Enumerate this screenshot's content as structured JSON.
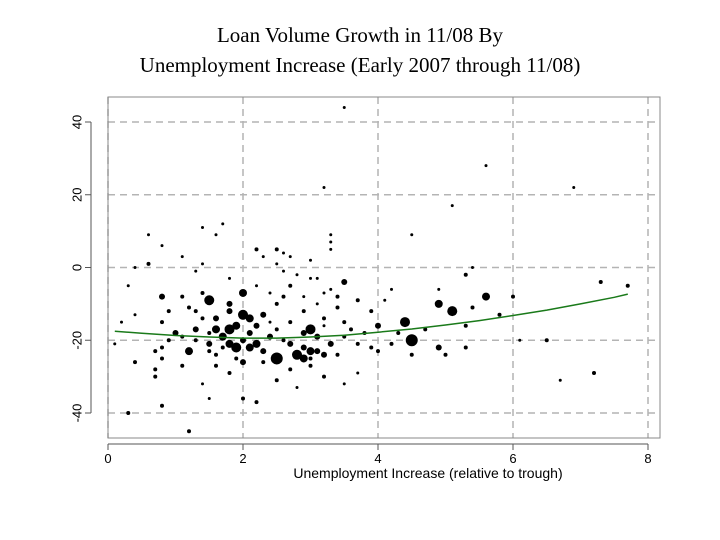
{
  "chart_data": {
    "type": "scatter",
    "title": "Loan Volume Growth in 11/08 By",
    "subtitle": "Unemployment Increase (Early 2007 through 11/08)",
    "xlabel": "Unemployment Increase (relative to trough)",
    "ylabel": "",
    "xlim": [
      0,
      8
    ],
    "ylim": [
      -40,
      40
    ],
    "x_ticks": [
      0,
      2,
      4,
      6,
      8
    ],
    "y_ticks": [
      -40,
      -20,
      0,
      20,
      40
    ],
    "grid": true,
    "colors": {
      "points": "#000000",
      "trend": "#1a7a1a",
      "grid": "#b4b4b4",
      "frame": "#888888"
    },
    "points": [
      {
        "x": 3.5,
        "y": 44,
        "s": 1.5
      },
      {
        "x": 5.6,
        "y": 28,
        "s": 1.5
      },
      {
        "x": 6.9,
        "y": 22,
        "s": 1.5
      },
      {
        "x": 3.2,
        "y": 22,
        "s": 1.5
      },
      {
        "x": 5.1,
        "y": 17,
        "s": 1.5
      },
      {
        "x": 1.7,
        "y": 12,
        "s": 1.5
      },
      {
        "x": 1.4,
        "y": 11,
        "s": 1.5
      },
      {
        "x": 0.6,
        "y": 9,
        "s": 1.5
      },
      {
        "x": 1.6,
        "y": 9,
        "s": 1.5
      },
      {
        "x": 4.5,
        "y": 9,
        "s": 1.5
      },
      {
        "x": 3.3,
        "y": 9,
        "s": 1.5
      },
      {
        "x": 3.3,
        "y": 7,
        "s": 1.5
      },
      {
        "x": 0.8,
        "y": 6,
        "s": 1.5
      },
      {
        "x": 2.2,
        "y": 5,
        "s": 2
      },
      {
        "x": 2.5,
        "y": 5,
        "s": 2
      },
      {
        "x": 3.3,
        "y": 5,
        "s": 1.5
      },
      {
        "x": 2.6,
        "y": 4,
        "s": 1.5
      },
      {
        "x": 2.7,
        "y": 3,
        "s": 1.5
      },
      {
        "x": 1.1,
        "y": 3,
        "s": 1.5
      },
      {
        "x": 2.3,
        "y": 3,
        "s": 1.5
      },
      {
        "x": 3.0,
        "y": 2,
        "s": 1.5
      },
      {
        "x": 0.6,
        "y": 1,
        "s": 2
      },
      {
        "x": 1.4,
        "y": 1,
        "s": 1.5
      },
      {
        "x": 2.5,
        "y": 1,
        "s": 1.5
      },
      {
        "x": 5.4,
        "y": 0,
        "s": 1.5
      },
      {
        "x": 0.4,
        "y": 0,
        "s": 1.5
      },
      {
        "x": 1.3,
        "y": -1,
        "s": 1.5
      },
      {
        "x": 2.6,
        "y": -1,
        "s": 1.5
      },
      {
        "x": 2.8,
        "y": -2,
        "s": 1.5
      },
      {
        "x": 5.3,
        "y": -2,
        "s": 2
      },
      {
        "x": 3.0,
        "y": -3,
        "s": 1.5
      },
      {
        "x": 3.1,
        "y": -3,
        "s": 1.5
      },
      {
        "x": 1.8,
        "y": -3,
        "s": 1.5
      },
      {
        "x": 3.5,
        "y": -4,
        "s": 3
      },
      {
        "x": 7.3,
        "y": -4,
        "s": 2
      },
      {
        "x": 7.7,
        "y": -5,
        "s": 2
      },
      {
        "x": 2.7,
        "y": -5,
        "s": 2
      },
      {
        "x": 2.2,
        "y": -5,
        "s": 1.5
      },
      {
        "x": 0.3,
        "y": -5,
        "s": 1.5
      },
      {
        "x": 3.3,
        "y": -6,
        "s": 1.5
      },
      {
        "x": 4.9,
        "y": -6,
        "s": 1.5
      },
      {
        "x": 4.2,
        "y": -6,
        "s": 1.5
      },
      {
        "x": 2.0,
        "y": -7,
        "s": 4
      },
      {
        "x": 1.4,
        "y": -7,
        "s": 2
      },
      {
        "x": 3.2,
        "y": -7,
        "s": 1.5
      },
      {
        "x": 2.4,
        "y": -7,
        "s": 1.5
      },
      {
        "x": 5.6,
        "y": -8,
        "s": 4
      },
      {
        "x": 6.0,
        "y": -8,
        "s": 2
      },
      {
        "x": 0.8,
        "y": -8,
        "s": 3
      },
      {
        "x": 1.1,
        "y": -8,
        "s": 2
      },
      {
        "x": 2.6,
        "y": -8,
        "s": 2
      },
      {
        "x": 2.9,
        "y": -8,
        "s": 1.5
      },
      {
        "x": 3.4,
        "y": -8,
        "s": 2
      },
      {
        "x": 3.7,
        "y": -9,
        "s": 2
      },
      {
        "x": 4.1,
        "y": -9,
        "s": 1.5
      },
      {
        "x": 1.5,
        "y": -9,
        "s": 5
      },
      {
        "x": 1.8,
        "y": -10,
        "s": 3
      },
      {
        "x": 2.5,
        "y": -10,
        "s": 2
      },
      {
        "x": 3.1,
        "y": -10,
        "s": 1.5
      },
      {
        "x": 4.9,
        "y": -10,
        "s": 4
      },
      {
        "x": 5.4,
        "y": -11,
        "s": 2
      },
      {
        "x": 1.2,
        "y": -11,
        "s": 2
      },
      {
        "x": 3.4,
        "y": -11,
        "s": 2
      },
      {
        "x": 0.9,
        "y": -12,
        "s": 2
      },
      {
        "x": 1.3,
        "y": -12,
        "s": 2
      },
      {
        "x": 1.8,
        "y": -12,
        "s": 3
      },
      {
        "x": 2.9,
        "y": -12,
        "s": 2
      },
      {
        "x": 3.9,
        "y": -12,
        "s": 2
      },
      {
        "x": 5.1,
        "y": -12,
        "s": 5
      },
      {
        "x": 5.8,
        "y": -13,
        "s": 2
      },
      {
        "x": 0.4,
        "y": -13,
        "s": 1.5
      },
      {
        "x": 2.0,
        "y": -13,
        "s": 5
      },
      {
        "x": 2.3,
        "y": -13,
        "s": 3
      },
      {
        "x": 2.1,
        "y": -14,
        "s": 4
      },
      {
        "x": 1.4,
        "y": -14,
        "s": 2
      },
      {
        "x": 1.6,
        "y": -14,
        "s": 3
      },
      {
        "x": 3.2,
        "y": -14,
        "s": 2
      },
      {
        "x": 3.5,
        "y": -15,
        "s": 2
      },
      {
        "x": 4.4,
        "y": -15,
        "s": 5
      },
      {
        "x": 0.2,
        "y": -15,
        "s": 1.5
      },
      {
        "x": 0.8,
        "y": -15,
        "s": 2
      },
      {
        "x": 2.7,
        "y": -15,
        "s": 2
      },
      {
        "x": 2.4,
        "y": -15,
        "s": 1.5
      },
      {
        "x": 4.0,
        "y": -16,
        "s": 3
      },
      {
        "x": 5.3,
        "y": -16,
        "s": 2
      },
      {
        "x": 1.9,
        "y": -16,
        "s": 4
      },
      {
        "x": 2.2,
        "y": -16,
        "s": 3
      },
      {
        "x": 3.2,
        "y": -16,
        "s": 1.5
      },
      {
        "x": 1.8,
        "y": -17,
        "s": 5
      },
      {
        "x": 1.6,
        "y": -17,
        "s": 4
      },
      {
        "x": 1.3,
        "y": -17,
        "s": 3
      },
      {
        "x": 2.5,
        "y": -17,
        "s": 2
      },
      {
        "x": 3.0,
        "y": -17,
        "s": 5
      },
      {
        "x": 3.6,
        "y": -17,
        "s": 2
      },
      {
        "x": 4.7,
        "y": -17,
        "s": 2
      },
      {
        "x": 1.0,
        "y": -18,
        "s": 3
      },
      {
        "x": 1.5,
        "y": -18,
        "s": 2
      },
      {
        "x": 2.1,
        "y": -18,
        "s": 3
      },
      {
        "x": 3.8,
        "y": -18,
        "s": 2
      },
      {
        "x": 4.3,
        "y": -18,
        "s": 2
      },
      {
        "x": 2.9,
        "y": -18,
        "s": 3
      },
      {
        "x": 1.1,
        "y": -19,
        "s": 2
      },
      {
        "x": 1.7,
        "y": -19,
        "s": 4
      },
      {
        "x": 2.4,
        "y": -19,
        "s": 3
      },
      {
        "x": 3.1,
        "y": -19,
        "s": 3
      },
      {
        "x": 3.5,
        "y": -19,
        "s": 2
      },
      {
        "x": 0.9,
        "y": -20,
        "s": 2
      },
      {
        "x": 2.0,
        "y": -20,
        "s": 3
      },
      {
        "x": 4.5,
        "y": -20,
        "s": 6
      },
      {
        "x": 6.1,
        "y": -20,
        "s": 1.5
      },
      {
        "x": 6.5,
        "y": -20,
        "s": 2
      },
      {
        "x": 1.3,
        "y": -20,
        "s": 2
      },
      {
        "x": 2.6,
        "y": -20,
        "s": 2
      },
      {
        "x": 3.3,
        "y": -21,
        "s": 3
      },
      {
        "x": 1.8,
        "y": -21,
        "s": 4
      },
      {
        "x": 2.2,
        "y": -21,
        "s": 4
      },
      {
        "x": 2.7,
        "y": -21,
        "s": 3
      },
      {
        "x": 3.7,
        "y": -21,
        "s": 2
      },
      {
        "x": 4.2,
        "y": -21,
        "s": 2
      },
      {
        "x": 1.5,
        "y": -21,
        "s": 3
      },
      {
        "x": 1.9,
        "y": -22,
        "s": 5
      },
      {
        "x": 2.1,
        "y": -22,
        "s": 4
      },
      {
        "x": 4.9,
        "y": -22,
        "s": 3
      },
      {
        "x": 5.3,
        "y": -22,
        "s": 2
      },
      {
        "x": 0.1,
        "y": -21,
        "s": 1.5
      },
      {
        "x": 0.8,
        "y": -22,
        "s": 2
      },
      {
        "x": 1.7,
        "y": -22,
        "s": 2
      },
      {
        "x": 2.9,
        "y": -22,
        "s": 3
      },
      {
        "x": 3.9,
        "y": -22,
        "s": 2
      },
      {
        "x": 3.1,
        "y": -23,
        "s": 3
      },
      {
        "x": 3.0,
        "y": -23,
        "s": 4
      },
      {
        "x": 4.0,
        "y": -23,
        "s": 2
      },
      {
        "x": 1.2,
        "y": -23,
        "s": 4
      },
      {
        "x": 1.5,
        "y": -23,
        "s": 2
      },
      {
        "x": 2.3,
        "y": -23,
        "s": 3
      },
      {
        "x": 0.7,
        "y": -23,
        "s": 2
      },
      {
        "x": 3.2,
        "y": -24,
        "s": 3
      },
      {
        "x": 2.8,
        "y": -24,
        "s": 5
      },
      {
        "x": 1.6,
        "y": -24,
        "s": 2
      },
      {
        "x": 4.5,
        "y": -24,
        "s": 2
      },
      {
        "x": 5.0,
        "y": -24,
        "s": 2
      },
      {
        "x": 3.4,
        "y": -24,
        "s": 2
      },
      {
        "x": 2.5,
        "y": -25,
        "s": 6
      },
      {
        "x": 2.9,
        "y": -25,
        "s": 4
      },
      {
        "x": 1.9,
        "y": -25,
        "s": 2
      },
      {
        "x": 2.0,
        "y": -26,
        "s": 3
      },
      {
        "x": 3.0,
        "y": -25,
        "s": 2
      },
      {
        "x": 0.8,
        "y": -25,
        "s": 2
      },
      {
        "x": 0.4,
        "y": -26,
        "s": 2
      },
      {
        "x": 2.3,
        "y": -26,
        "s": 2
      },
      {
        "x": 1.1,
        "y": -27,
        "s": 2
      },
      {
        "x": 1.6,
        "y": -27,
        "s": 2
      },
      {
        "x": 3.0,
        "y": -27,
        "s": 2
      },
      {
        "x": 2.7,
        "y": -28,
        "s": 2
      },
      {
        "x": 0.7,
        "y": -28,
        "s": 2
      },
      {
        "x": 1.8,
        "y": -29,
        "s": 2
      },
      {
        "x": 7.2,
        "y": -29,
        "s": 2
      },
      {
        "x": 3.7,
        "y": -29,
        "s": 1.5
      },
      {
        "x": 0.7,
        "y": -30,
        "s": 2
      },
      {
        "x": 3.2,
        "y": -30,
        "s": 2
      },
      {
        "x": 6.7,
        "y": -31,
        "s": 1.5
      },
      {
        "x": 2.5,
        "y": -31,
        "s": 2
      },
      {
        "x": 1.4,
        "y": -32,
        "s": 1.5
      },
      {
        "x": 3.5,
        "y": -32,
        "s": 1.5
      },
      {
        "x": 2.8,
        "y": -33,
        "s": 1.5
      },
      {
        "x": 1.5,
        "y": -36,
        "s": 1.5
      },
      {
        "x": 2.0,
        "y": -36,
        "s": 2
      },
      {
        "x": 2.2,
        "y": -37,
        "s": 2
      },
      {
        "x": 0.8,
        "y": -38,
        "s": 2
      },
      {
        "x": 0.3,
        "y": -40,
        "s": 2
      },
      {
        "x": 1.2,
        "y": -45,
        "s": 2
      }
    ],
    "trend_line": {
      "x": [
        0.1,
        0.5,
        1.0,
        1.5,
        2.0,
        2.5,
        3.0,
        3.5,
        4.0,
        4.5,
        5.0,
        5.5,
        6.0,
        6.5,
        7.0,
        7.5,
        7.7
      ],
      "y": [
        -17.5,
        -18.1,
        -18.7,
        -19.1,
        -19.4,
        -19.4,
        -19.1,
        -18.6,
        -17.8,
        -16.9,
        -15.8,
        -14.6,
        -13.2,
        -11.7,
        -10.0,
        -8.2,
        -7.3
      ]
    }
  }
}
